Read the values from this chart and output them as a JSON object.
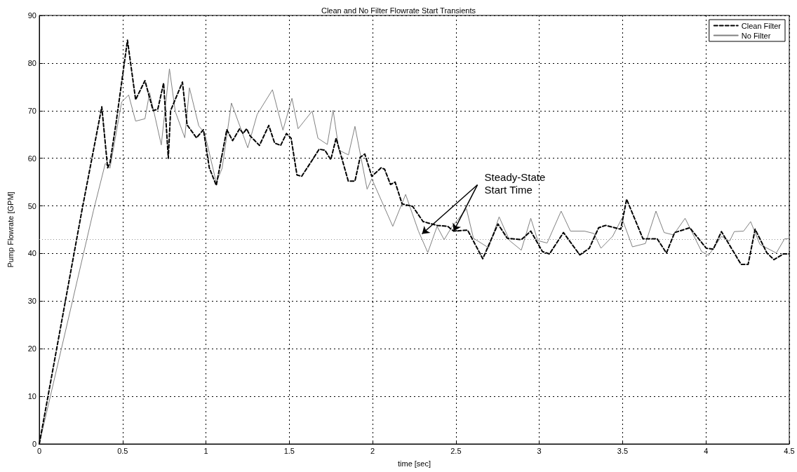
{
  "chart_data": {
    "type": "line",
    "title": "Clean and No Filter Flowrate Start Transients",
    "xlabel": "time [sec]",
    "ylabel": "Pump Flowrate [GPM]",
    "xlim": [
      0,
      4.5
    ],
    "xticks": [
      0,
      0.5,
      1,
      1.5,
      2,
      2.5,
      3,
      3.5,
      4,
      4.5
    ],
    "ylim": [
      0,
      90
    ],
    "yticks": [
      0,
      10,
      20,
      30,
      40,
      50,
      60,
      70,
      80,
      90
    ],
    "grid": true,
    "legend": "top right",
    "marker": "none",
    "annotations": [
      {
        "text": "Steady-State Start Time",
        "x": 2.486,
        "y": 44.7
      }
    ],
    "ref_lines": [
      {
        "axis": "y",
        "value": 43,
        "color": "#909090",
        "line_style": "dotted"
      }
    ],
    "series": [
      {
        "name": "Clean Filter",
        "color": "#000000",
        "line_style": "dashed",
        "x": [
          0,
          0.255,
          0.375,
          0.41,
          0.424,
          0.459,
          0.529,
          0.578,
          0.634,
          0.683,
          0.711,
          0.746,
          0.774,
          0.788,
          0.859,
          0.887,
          0.943,
          0.985,
          1.02,
          1.062,
          1.125,
          1.16,
          1.202,
          1.223,
          1.244,
          1.265,
          1.293,
          1.321,
          1.377,
          1.412,
          1.448,
          1.483,
          1.511,
          1.546,
          1.574,
          1.63,
          1.679,
          1.714,
          1.749,
          1.781,
          1.854,
          1.894,
          1.925,
          1.953,
          1.995,
          2.051,
          2.072,
          2.107,
          2.135,
          2.177,
          2.24,
          2.303,
          2.387,
          2.451,
          2.486,
          2.57,
          2.661,
          2.752,
          2.808,
          2.892,
          2.949,
          3.019,
          3.061,
          3.145,
          3.243,
          3.3,
          3.356,
          3.398,
          3.489,
          3.524,
          3.622,
          3.707,
          3.763,
          3.812,
          3.903,
          4.002,
          4.044,
          4.093,
          4.211,
          4.253,
          4.295,
          4.366,
          4.408,
          4.464,
          4.5
        ],
        "values": [
          0,
          48.9,
          70.8,
          58,
          59,
          67,
          84.8,
          72.3,
          76.3,
          70,
          70.3,
          75.8,
          60,
          70,
          76,
          67,
          64.3,
          66,
          58,
          54.3,
          66,
          63.7,
          66.2,
          65.2,
          66.2,
          64.7,
          63.7,
          62.7,
          66.9,
          63.2,
          62.7,
          65.2,
          64.2,
          56.5,
          56.2,
          59.2,
          61.9,
          61.7,
          59.7,
          64.2,
          55.2,
          55.2,
          60.2,
          60.9,
          56.2,
          58,
          57.7,
          54.5,
          55,
          50.4,
          49.9,
          46.7,
          45.9,
          45.7,
          44.7,
          44.9,
          38.9,
          46.2,
          43.2,
          42.9,
          44.7,
          40.4,
          39.9,
          44.4,
          39.7,
          41.1,
          45.4,
          45.9,
          45.1,
          51.4,
          43.1,
          43.1,
          40.1,
          44.4,
          45.4,
          41.1,
          40.9,
          44.6,
          37.7,
          37.7,
          45.1,
          40.1,
          38.7,
          39.9,
          39.9
        ]
      },
      {
        "name": "No Filter",
        "color": "#808080",
        "line_style": "solid",
        "x": [
          0,
          0.325,
          0.396,
          0.424,
          0.494,
          0.536,
          0.578,
          0.634,
          0.662,
          0.732,
          0.781,
          0.816,
          0.873,
          0.901,
          0.957,
          0.992,
          1.062,
          1.097,
          1.153,
          1.251,
          1.307,
          1.399,
          1.462,
          1.516,
          1.553,
          1.637,
          1.672,
          1.728,
          1.763,
          1.798,
          1.855,
          1.894,
          1.967,
          1.995,
          2.121,
          2.198,
          2.275,
          2.331,
          2.387,
          2.429,
          2.472,
          2.563,
          2.605,
          2.696,
          2.759,
          2.822,
          2.892,
          2.949,
          2.991,
          3.047,
          3.131,
          3.187,
          3.271,
          3.328,
          3.37,
          3.44,
          3.496,
          3.559,
          3.637,
          3.7,
          3.749,
          3.805,
          3.875,
          3.974,
          4.016,
          4.093,
          4.142,
          4.17,
          4.226,
          4.268,
          4.324,
          4.422,
          4.472,
          4.5
        ],
        "values": [
          0,
          49,
          58.9,
          57.9,
          71.8,
          73.3,
          67.8,
          68.3,
          73.8,
          62.8,
          78.8,
          69.8,
          64.3,
          74.8,
          66.8,
          65.3,
          54.9,
          57.9,
          71.6,
          62.2,
          69.2,
          74.4,
          65.9,
          72.6,
          66.2,
          69.9,
          64.2,
          62.9,
          70.1,
          61.7,
          60.7,
          66.7,
          53.5,
          55.7,
          45.7,
          52.4,
          44.7,
          40.2,
          45.7,
          42.9,
          45.4,
          49.4,
          43.2,
          41.2,
          47.7,
          42.7,
          40.7,
          47.4,
          42.7,
          42.2,
          48.9,
          44.7,
          44.7,
          44.2,
          41.1,
          43.6,
          47.4,
          41.4,
          42.1,
          48.9,
          44.4,
          43.9,
          47.4,
          40.4,
          39.6,
          43.6,
          42.6,
          44.6,
          44.7,
          46.7,
          41.9,
          40.1,
          43.1,
          43.1
        ]
      }
    ]
  }
}
